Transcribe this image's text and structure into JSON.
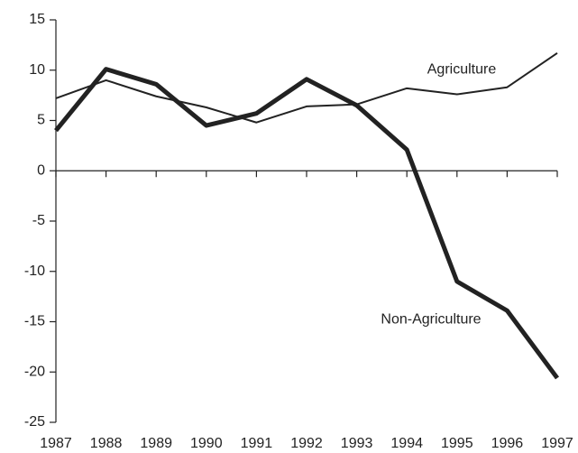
{
  "chart_data": {
    "type": "line",
    "x": [
      1987,
      1988,
      1989,
      1990,
      1991,
      1992,
      1993,
      1994,
      1995,
      1996,
      1997
    ],
    "xlim": [
      1987,
      1997
    ],
    "xticks": [
      1987,
      1988,
      1989,
      1990,
      1991,
      1992,
      1993,
      1994,
      1995,
      1996,
      1997
    ],
    "ylim": [
      -25,
      15
    ],
    "yticks": [
      -25,
      -20,
      -15,
      -10,
      -5,
      0,
      5,
      10,
      15
    ],
    "grid": false,
    "series": [
      {
        "name": "Agriculture",
        "color": "#222222",
        "width": 2,
        "values": [
          7.2,
          9.0,
          7.4,
          6.3,
          4.8,
          6.4,
          6.6,
          8.2,
          7.6,
          8.3,
          11.7
        ]
      },
      {
        "name": "Non-Agriculture",
        "color": "#222222",
        "width": 5,
        "values": [
          4.0,
          10.1,
          8.6,
          4.5,
          5.7,
          9.1,
          6.5,
          2.1,
          -11.0,
          -13.9,
          -20.6
        ]
      }
    ]
  }
}
